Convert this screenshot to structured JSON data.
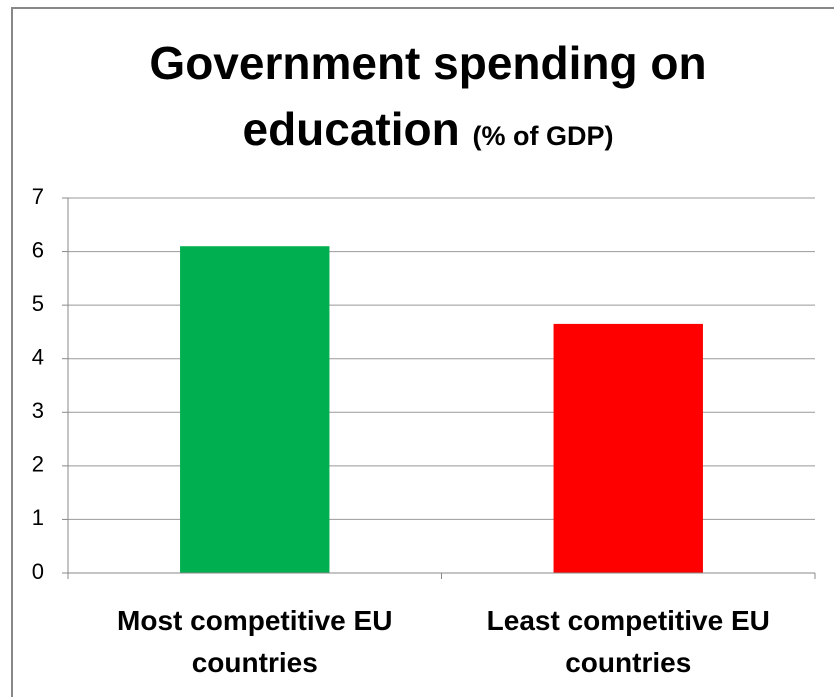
{
  "chart_data": {
    "type": "bar",
    "title": "Government spending on education",
    "subtitle": "(% of GDP)",
    "categories": [
      "Most competitive EU countries",
      "Least competitive EU countries"
    ],
    "values": [
      6.1,
      4.65
    ],
    "colors": [
      "#00b050",
      "#ff0000"
    ],
    "ylim": [
      0,
      7
    ],
    "yticks": [
      0,
      1,
      2,
      3,
      4,
      5,
      6,
      7
    ],
    "grid": true
  }
}
